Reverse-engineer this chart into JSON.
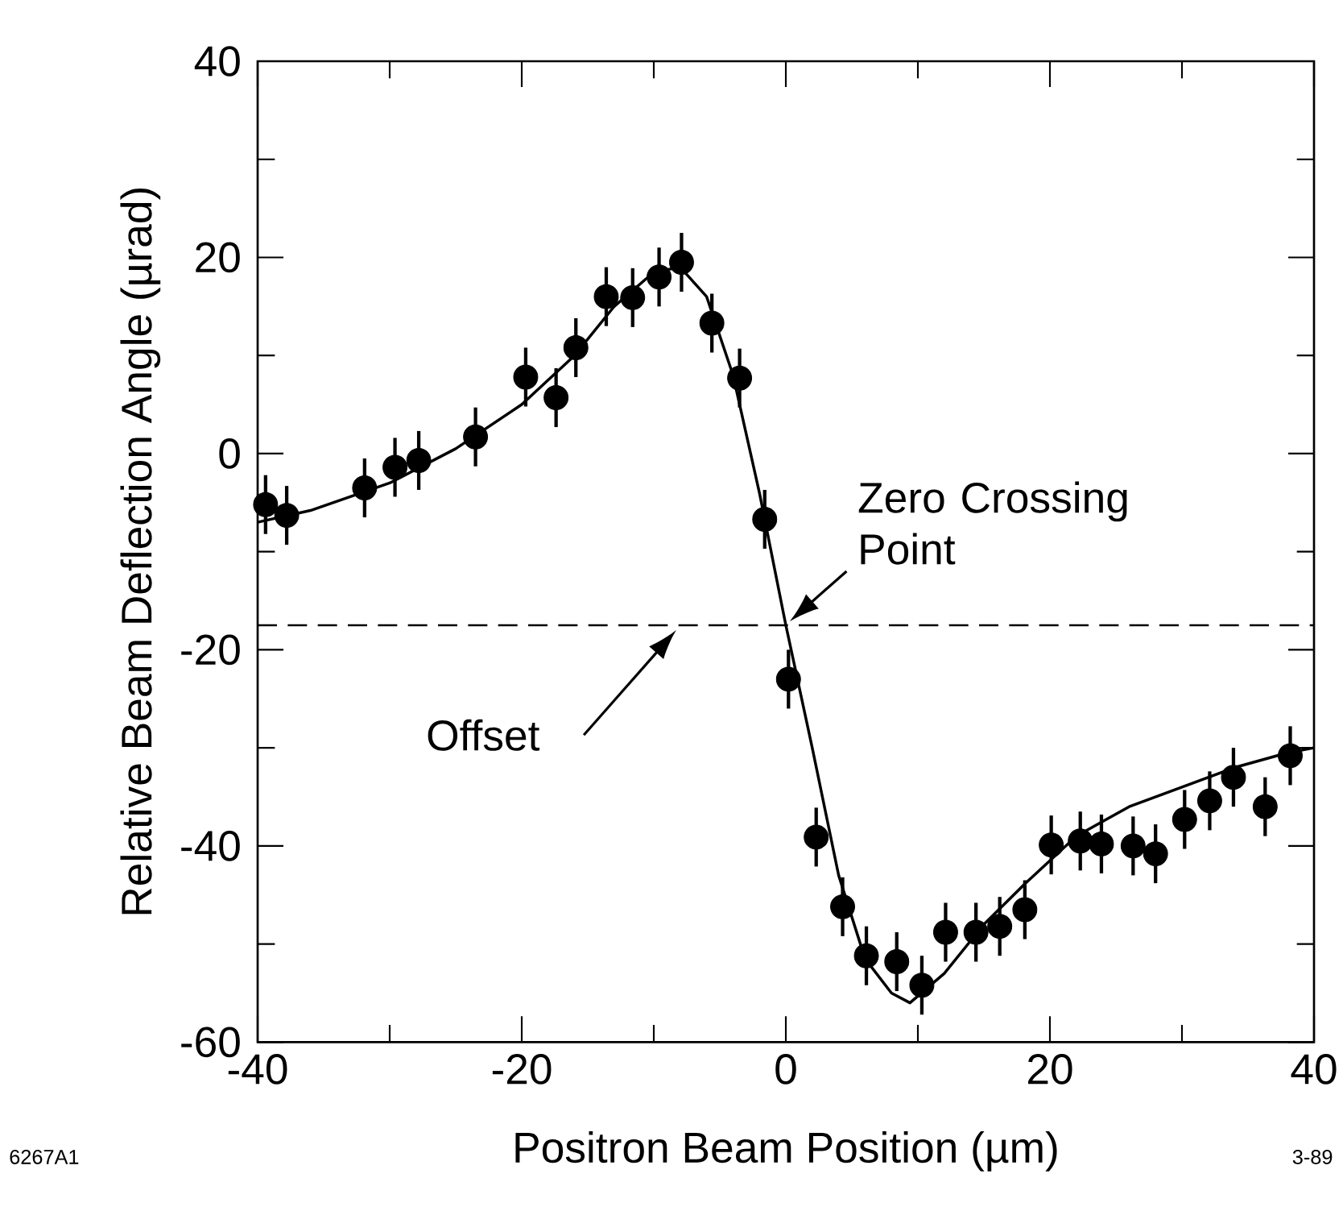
{
  "chart_data": {
    "type": "scatter",
    "xlabel": "Positron Beam Position    (µm)",
    "ylabel": "Relative Beam Deflection Angle     (µrad)",
    "xlim": [
      -40,
      40
    ],
    "ylim": [
      -60,
      40
    ],
    "xticks": [
      -40,
      {
        "value": -30,
        "label": null
      },
      -20,
      {
        "value": -10,
        "label": null
      },
      0,
      {
        "value": 10,
        "label": null
      },
      20,
      {
        "value": 30,
        "label": null
      },
      40
    ],
    "yticks": [
      -60,
      {
        "value": -50,
        "label": null
      },
      -40,
      {
        "value": -30,
        "label": null
      },
      -20,
      {
        "value": -10,
        "label": null
      },
      0,
      {
        "value": 10,
        "label": null
      },
      20,
      {
        "value": 30,
        "label": null
      },
      40
    ],
    "marker": "circle",
    "grid": false,
    "series": [
      {
        "color": "#000000",
        "x": [
          -39.4,
          -37.8,
          -31.9,
          -29.6,
          -27.8,
          -23.5,
          -19.7,
          -17.4,
          -15.9,
          -13.6,
          -11.6,
          -9.6,
          -7.9,
          -5.6,
          -3.5,
          -1.6,
          0.2,
          2.3,
          4.3,
          6.1,
          8.4,
          10.3,
          12.1,
          14.4,
          16.2,
          18.1,
          20.1,
          22.3,
          23.9,
          26.3,
          28.0,
          30.2,
          32.1,
          33.9,
          36.3,
          38.2
        ],
        "values": [
          -5.2,
          -6.3,
          -3.5,
          -1.4,
          -0.7,
          1.7,
          7.8,
          5.7,
          10.8,
          16.0,
          15.9,
          18.0,
          19.5,
          13.3,
          7.7,
          -6.7,
          -23.0,
          -39.1,
          -46.2,
          -51.2,
          -51.8,
          -54.2,
          -48.8,
          -48.8,
          -48.2,
          -46.5,
          -39.9,
          -39.5,
          -39.8,
          -40.0,
          -40.8,
          -37.3,
          -35.4,
          -33.0,
          -36.0,
          -30.8
        ],
        "errors": [
          3,
          3,
          3,
          3,
          3,
          3,
          3,
          3,
          3,
          3,
          3,
          3,
          3,
          3,
          3,
          3,
          3,
          3,
          3,
          3,
          3,
          3,
          3,
          3,
          3,
          3,
          3,
          3,
          3,
          3,
          3,
          3,
          3,
          3,
          3,
          3
        ]
      },
      {
        "type": "line",
        "color": "#000000",
        "marker": "none",
        "line_style": "solid",
        "x": [
          -40,
          -36,
          -30,
          -25,
          -20,
          -16,
          -13,
          -10,
          -8,
          -6,
          -4,
          -2,
          0,
          2,
          4,
          6,
          8,
          9.4,
          12,
          15,
          18,
          22,
          26,
          30,
          34,
          38,
          40
        ],
        "values": [
          -7,
          -5.8,
          -3,
          0.5,
          5,
          10,
          15,
          18.5,
          19,
          16,
          8,
          -4,
          -17.5,
          -30,
          -43,
          -51.5,
          -55,
          -56,
          -53,
          -48,
          -44,
          -39,
          -36,
          -34,
          -32,
          -30.5,
          -30
        ]
      }
    ],
    "ref_lines": [
      {
        "axis": "y",
        "value": -17.5,
        "line_style": "dashed",
        "color": "#000000"
      }
    ],
    "annotations": [
      {
        "text": "Zero Crossing Point",
        "x": 0,
        "y": -17.5
      },
      "Offset",
      "6267A1",
      "3-89"
    ]
  }
}
